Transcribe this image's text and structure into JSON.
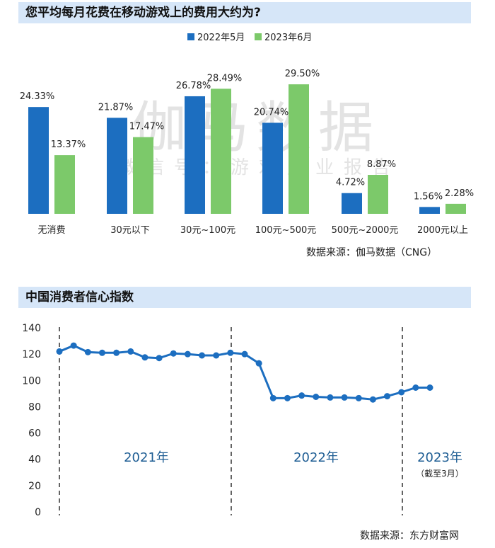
{
  "chart1": {
    "title": "您平均每月花费在移动游戏上的费用大约为?",
    "source": "数据来源：伽马数据（CNG）",
    "watermark_big": "伽马数据",
    "watermark_small": "微信号：游戏产业报告",
    "colors": {
      "s1": "#1c6ec0",
      "s2": "#7cc96a"
    }
  },
  "chart2": {
    "title": "中国消费者信心指数",
    "source": "数据来源：东方财富网",
    "period_labels": [
      "2021年",
      "2022年",
      "2023年"
    ],
    "period_note": "（截至3月）",
    "color": "#1c6ec0"
  },
  "chart_data": [
    {
      "type": "bar",
      "title": "您平均每月花费在移动游戏上的费用大约为?",
      "categories": [
        "无消费",
        "30元以下",
        "30元~100元",
        "100元~500元",
        "500元~2000元",
        "2000元以上"
      ],
      "series": [
        {
          "name": "2022年5月",
          "values": [
            24.33,
            21.87,
            26.78,
            20.74,
            4.72,
            1.56
          ],
          "labels": [
            "24.33%",
            "21.87%",
            "26.78%",
            "20.74%",
            "4.72%",
            "1.56%"
          ]
        },
        {
          "name": "2023年6月",
          "values": [
            13.37,
            17.47,
            28.49,
            29.5,
            8.87,
            2.28
          ],
          "labels": [
            "13.37%",
            "17.47%",
            "28.49%",
            "29.50%",
            "8.87%",
            "2.28%"
          ]
        }
      ],
      "legend_position": "top-center"
    },
    {
      "type": "line",
      "title": "中国消费者信心指数",
      "ylim": [
        0,
        140
      ],
      "yticks": [
        "0",
        "20",
        "40",
        "60",
        "80",
        "100",
        "120",
        "140"
      ],
      "values": [
        122,
        126.5,
        121.5,
        121,
        121,
        122,
        117.5,
        117,
        120.5,
        120,
        119,
        119,
        121,
        120,
        113,
        86.5,
        86.5,
        88.5,
        87.5,
        87,
        87,
        86.5,
        85.5,
        88,
        91,
        94.5,
        94.5
      ],
      "grid": false
    }
  ]
}
